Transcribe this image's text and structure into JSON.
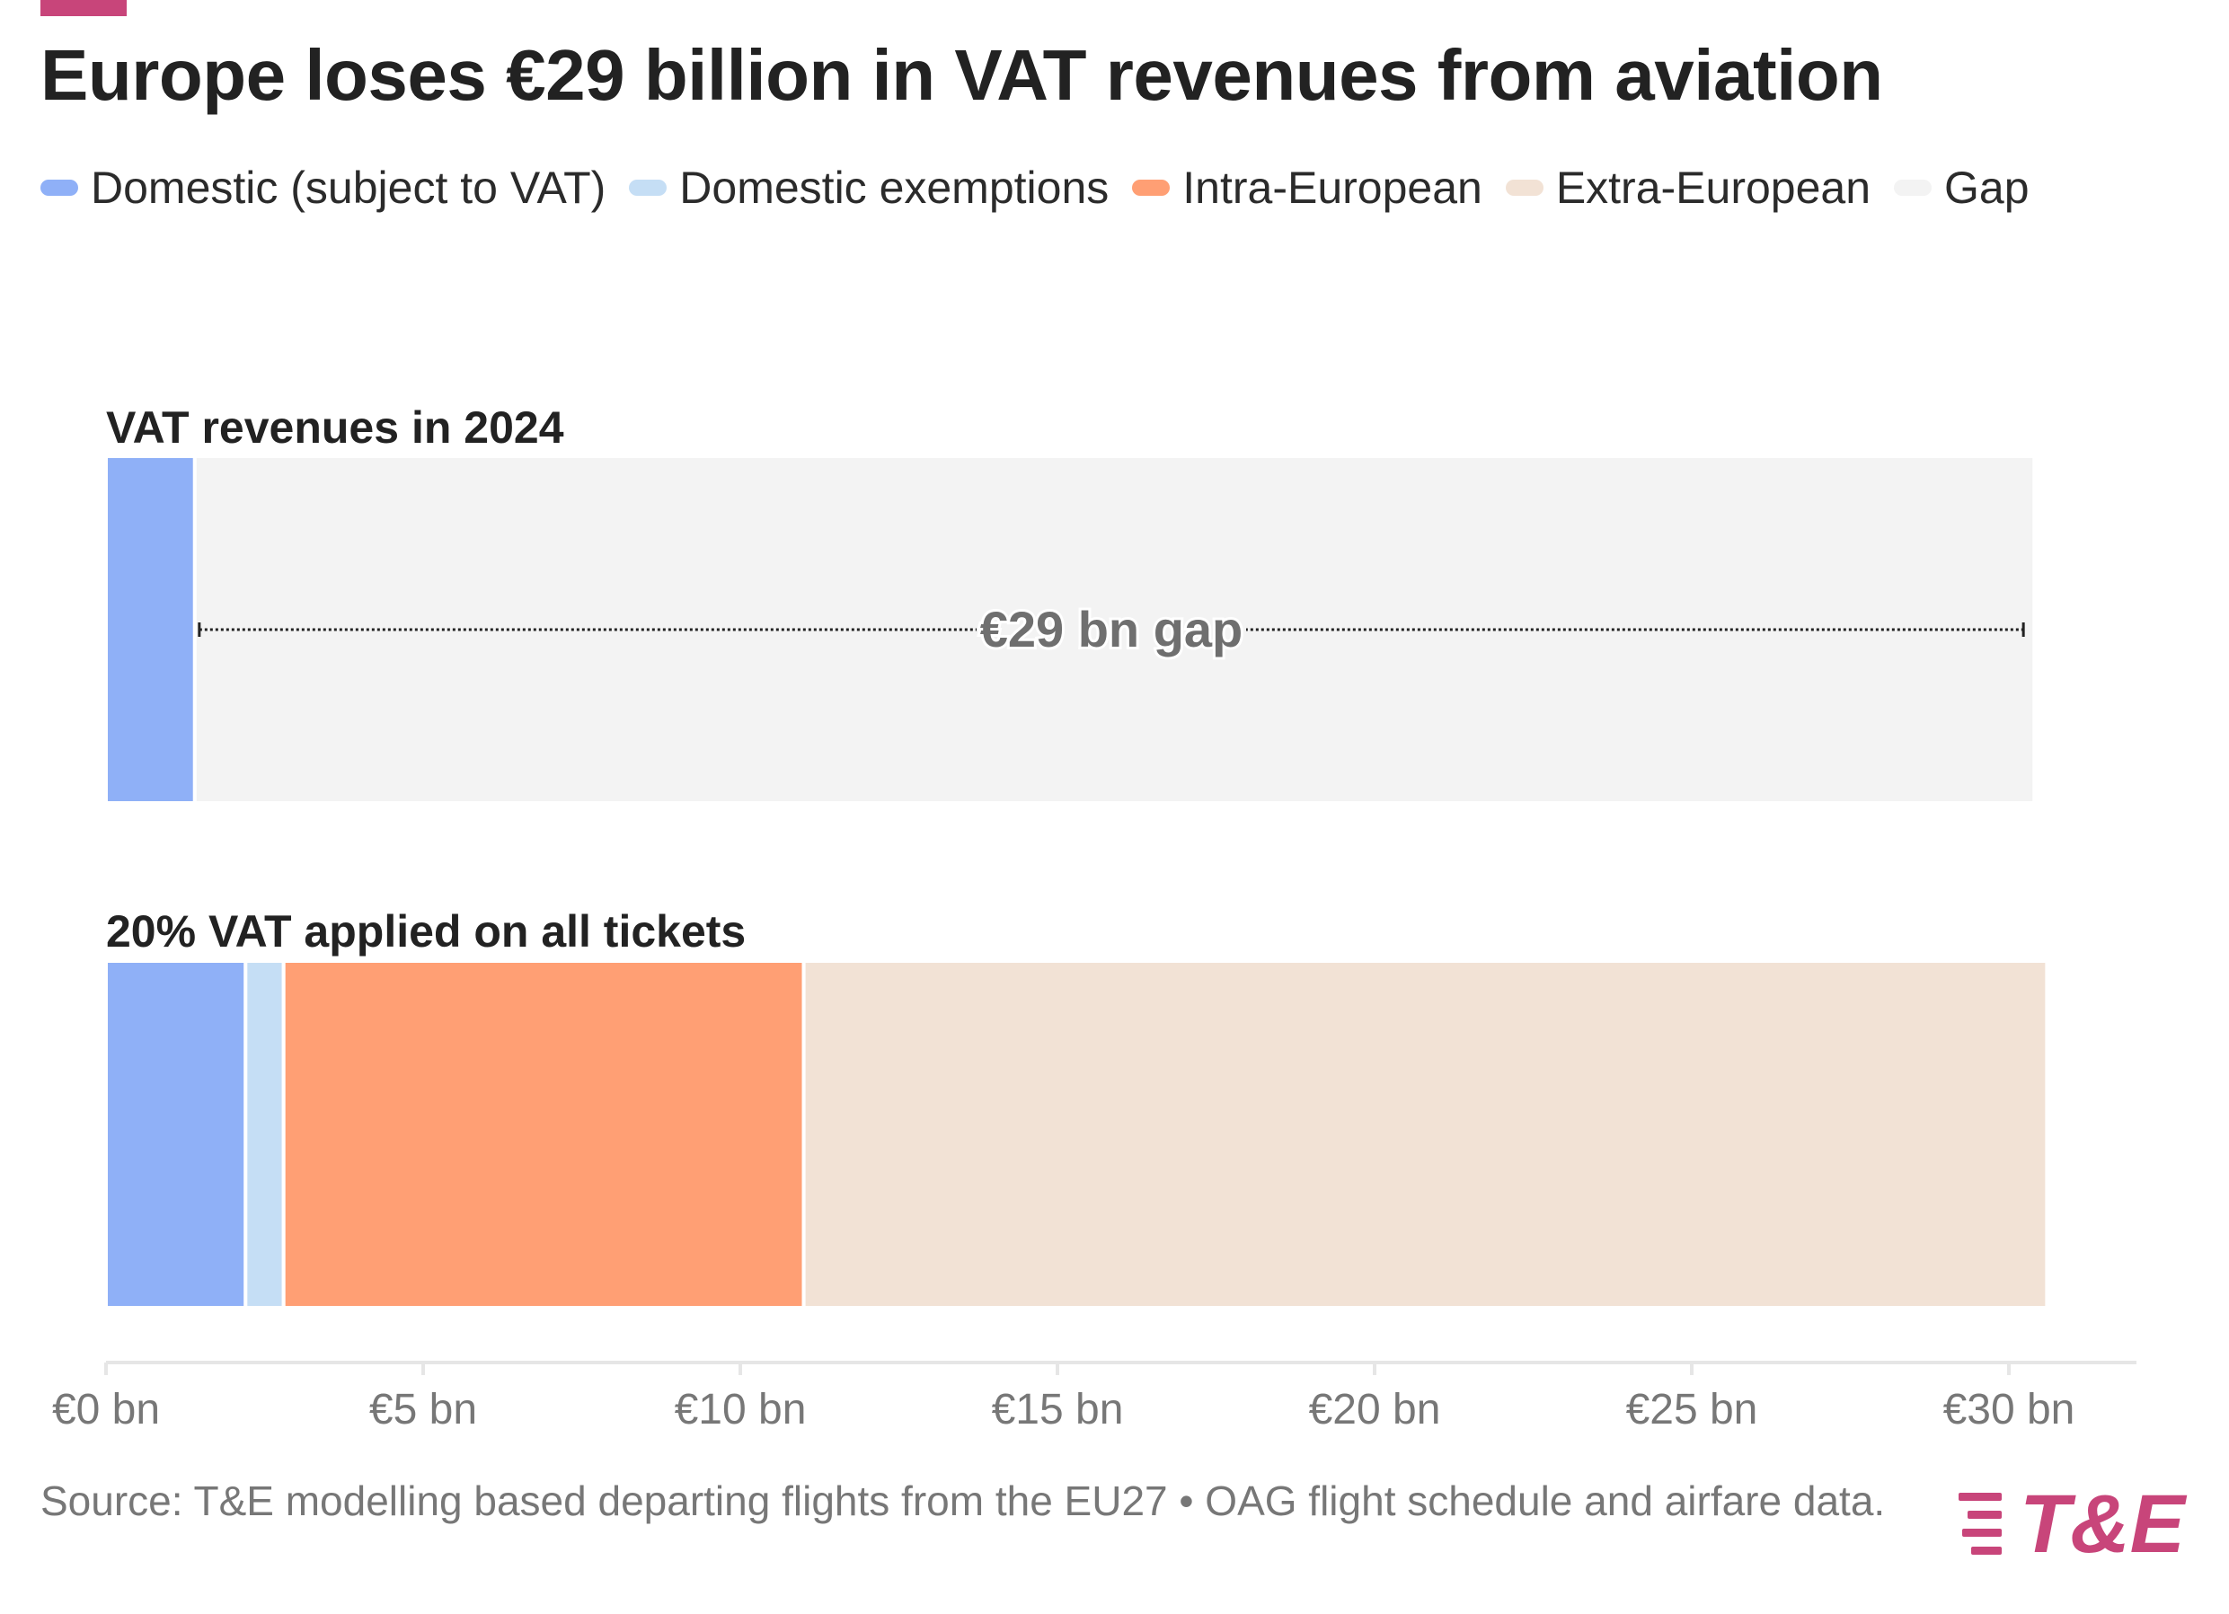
{
  "title": "Europe loses €29 billion in VAT revenues from aviation",
  "colors": {
    "accent": "#c8457a",
    "domestic": "#8fb0f7",
    "domestic_exemptions": "#c5def5",
    "intra_european": "#ff9f74",
    "extra_european": "#f2e2d5",
    "gap": "#f3f3f3"
  },
  "legend": [
    {
      "label": "Domestic (subject to VAT)",
      "color": "#8fb0f7"
    },
    {
      "label": "Domestic exemptions",
      "color": "#c5def5"
    },
    {
      "label": "Intra-European",
      "color": "#ff9f74"
    },
    {
      "label": "Extra-European",
      "color": "#f2e2d5"
    },
    {
      "label": "Gap",
      "color": "#f3f3f3"
    }
  ],
  "chart_data": {
    "type": "bar",
    "orientation": "horizontal-stacked",
    "rows": [
      {
        "label": "VAT revenues in 2024",
        "segments": [
          {
            "name": "Domestic (subject to VAT)",
            "value": 1.4,
            "color": "#8fb0f7"
          },
          {
            "name": "Gap",
            "value": 29.0,
            "color": "#f3f3f3"
          }
        ],
        "annotation": {
          "text": "€29 bn gap",
          "from": 1.4,
          "to": 30.3
        }
      },
      {
        "label": "20% VAT applied on all tickets",
        "segments": [
          {
            "name": "Domestic (subject to VAT)",
            "value": 2.2,
            "color": "#8fb0f7"
          },
          {
            "name": "Domestic exemptions",
            "value": 0.6,
            "color": "#c5def5"
          },
          {
            "name": "Intra-European",
            "value": 8.2,
            "color": "#ff9f74"
          },
          {
            "name": "Extra-European",
            "value": 19.6,
            "color": "#f2e2d5"
          }
        ]
      }
    ],
    "xaxis": {
      "ticks": [
        0,
        5,
        10,
        15,
        20,
        25,
        30
      ],
      "tick_labels": [
        "€0 bn",
        "€5 bn",
        "€10 bn",
        "€15 bn",
        "€20 bn",
        "€25 bn",
        "€30 bn"
      ],
      "range": [
        0,
        31.7
      ]
    },
    "grid": false
  },
  "source": "Source: T&E modelling based departing flights from the EU27 • OAG flight schedule and airfare data.",
  "logo": {
    "text": "T&E",
    "icon": "speed-lines-icon"
  }
}
